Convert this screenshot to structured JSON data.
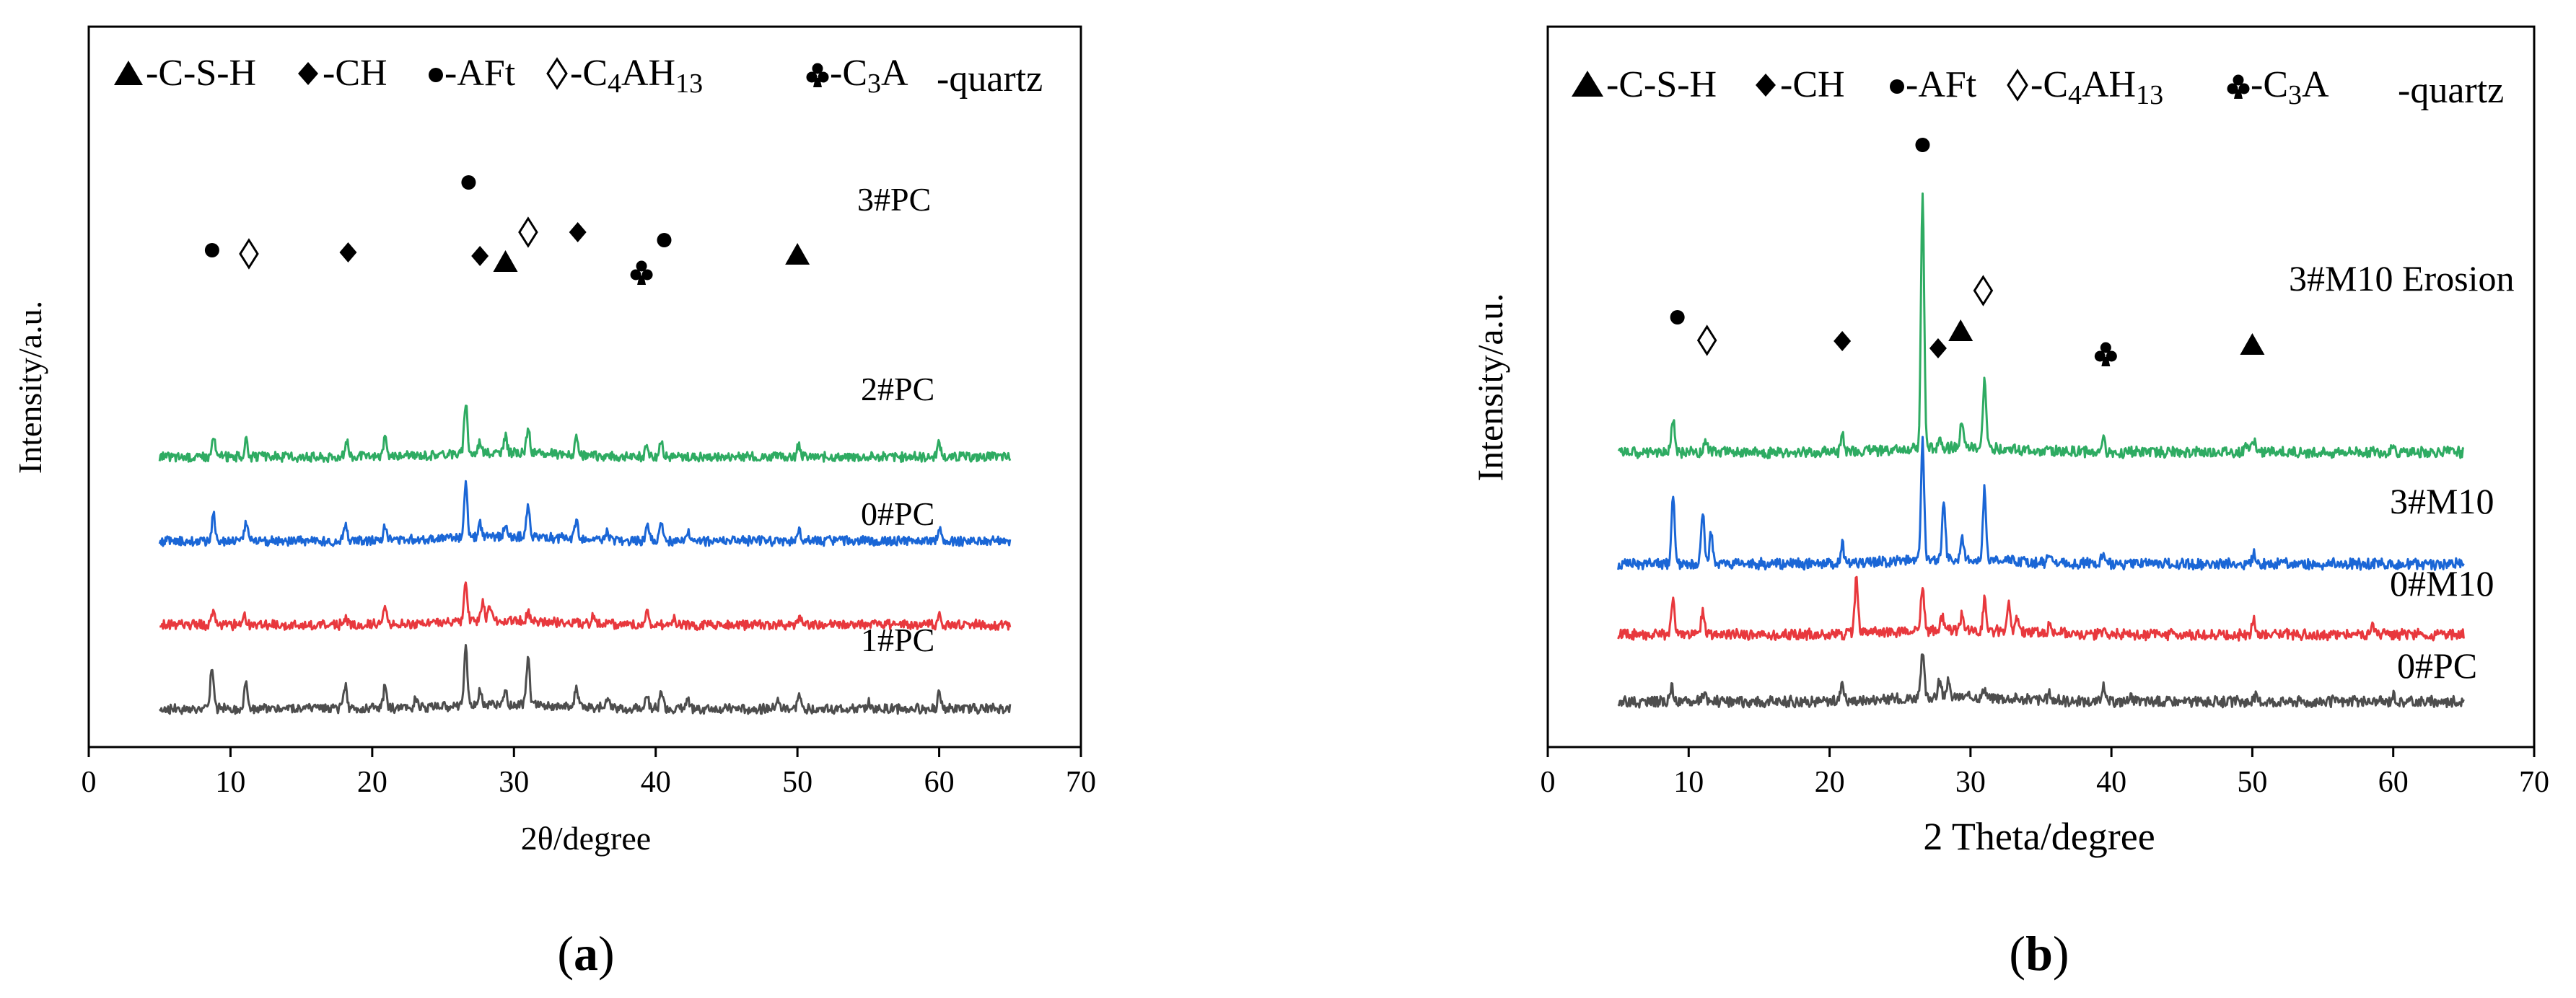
{
  "chart_data": [
    {
      "panel_label": "(a)",
      "type": "line",
      "xlabel": "2θ/degree",
      "ylabel": "Intensity/a.u.",
      "xlim": [
        0,
        70
      ],
      "xticks": [
        0,
        10,
        20,
        30,
        40,
        50,
        60,
        70
      ],
      "yticks": "none",
      "legend": {
        "placement": "top",
        "entries": [
          {
            "symbol": "triangle",
            "label": "-C-S-H"
          },
          {
            "symbol": "diamond",
            "label": "-CH"
          },
          {
            "symbol": "circle",
            "label": "-AFt"
          },
          {
            "symbol": "diamond-open",
            "label": "-C",
            "parts": [
              [
                "C",
                ""
              ],
              [
                "4",
                "sub"
              ],
              [
                "AH",
                ""
              ],
              [
                "13",
                "sub"
              ]
            ]
          },
          {
            "symbol": "club",
            "label": "-C",
            "parts": [
              [
                "C",
                ""
              ],
              [
                "3",
                "sub"
              ],
              [
                "A",
                ""
              ]
            ]
          },
          {
            "symbol": "none",
            "label": "-quartz"
          }
        ]
      },
      "series": [
        {
          "name": "1#PC",
          "color": "#4d4d4d",
          "baseline": 0.0,
          "peaks": [
            [
              8.7,
              2.6
            ],
            [
              11.1,
              1.9
            ],
            [
              18.1,
              1.5
            ],
            [
              20.9,
              1.4
            ],
            [
              23.1,
              0.6
            ],
            [
              26.6,
              3.6
            ],
            [
              27.6,
              0.8
            ],
            [
              29.4,
              0.9
            ],
            [
              31.0,
              3.0
            ],
            [
              34.4,
              1.4
            ],
            [
              36.6,
              0.7
            ],
            [
              39.4,
              0.9
            ],
            [
              40.4,
              1.1
            ],
            [
              42.3,
              0.6
            ],
            [
              48.6,
              0.5
            ],
            [
              50.1,
              0.9
            ],
            [
              55.0,
              0.4
            ],
            [
              60.0,
              1.0
            ]
          ]
        },
        {
          "name": "0#PC",
          "color": "#e8383d",
          "baseline": 5.2,
          "peaks": [
            [
              8.8,
              1.0
            ],
            [
              11.0,
              0.5
            ],
            [
              18.1,
              0.5
            ],
            [
              20.9,
              1.2
            ],
            [
              26.6,
              2.4
            ],
            [
              27.8,
              1.1
            ],
            [
              28.3,
              1.0
            ],
            [
              31.0,
              0.6
            ],
            [
              35.6,
              0.5
            ],
            [
              39.4,
              1.0
            ],
            [
              41.3,
              0.4
            ],
            [
              50.2,
              0.5
            ],
            [
              60.0,
              0.6
            ]
          ]
        },
        {
          "name": "2#PC",
          "color": "#1a66d6",
          "baseline": 10.4,
          "peaks": [
            [
              8.8,
              1.7
            ],
            [
              11.1,
              1.2
            ],
            [
              18.1,
              1.1
            ],
            [
              20.9,
              1.0
            ],
            [
              26.6,
              3.6
            ],
            [
              27.6,
              0.8
            ],
            [
              29.4,
              0.9
            ],
            [
              31.0,
              2.1
            ],
            [
              34.4,
              1.1
            ],
            [
              36.6,
              0.5
            ],
            [
              39.4,
              0.9
            ],
            [
              40.4,
              1.0
            ],
            [
              42.3,
              0.5
            ],
            [
              50.1,
              0.6
            ],
            [
              60.0,
              0.8
            ]
          ]
        },
        {
          "name": "3#PC",
          "color": "#2eab62",
          "baseline": 15.6,
          "peaks": [
            [
              8.8,
              1.2
            ],
            [
              11.1,
              1.0
            ],
            [
              18.2,
              1.0
            ],
            [
              20.9,
              1.1
            ],
            [
              26.6,
              3.2
            ],
            [
              27.6,
              0.8
            ],
            [
              29.4,
              1.0
            ],
            [
              31.0,
              1.6
            ],
            [
              34.4,
              1.0
            ],
            [
              39.4,
              0.7
            ],
            [
              40.4,
              1.0
            ],
            [
              50.1,
              0.7
            ],
            [
              60.0,
              0.9
            ]
          ]
        }
      ],
      "markers": [
        {
          "symbol": "circle",
          "x": 8.7
        },
        {
          "symbol": "diamond-open",
          "x": 11.3
        },
        {
          "symbol": "diamond",
          "x": 18.3
        },
        {
          "symbol": "circle",
          "x": 26.8
        },
        {
          "symbol": "diamond",
          "x": 27.6
        },
        {
          "symbol": "triangle",
          "x": 29.4
        },
        {
          "symbol": "diamond-open",
          "x": 31.0
        },
        {
          "symbol": "diamond",
          "x": 34.5
        },
        {
          "symbol": "club",
          "x": 39.0
        },
        {
          "symbol": "circle",
          "x": 40.6
        },
        {
          "symbol": "triangle",
          "x": 50.0
        }
      ]
    },
    {
      "panel_label": "(b)",
      "type": "line",
      "xlabel": "2 Theta/degree",
      "ylabel": "Intensity/a.u.",
      "xlim": [
        0,
        70
      ],
      "xticks": [
        0,
        10,
        20,
        30,
        40,
        50,
        60,
        70
      ],
      "yticks": "none",
      "legend": {
        "placement": "top",
        "entries": [
          {
            "symbol": "triangle",
            "label": "-C-S-H"
          },
          {
            "symbol": "diamond",
            "label": "-CH"
          },
          {
            "symbol": "circle",
            "label": "-AFt"
          },
          {
            "symbol": "diamond-open",
            "label": "-C",
            "parts": [
              [
                "C",
                ""
              ],
              [
                "4",
                "sub"
              ],
              [
                "AH",
                ""
              ],
              [
                "13",
                "sub"
              ]
            ]
          },
          {
            "symbol": "club",
            "label": "-C",
            "parts": [
              [
                "C",
                ""
              ],
              [
                "3",
                "sub"
              ],
              [
                "A",
                ""
              ]
            ]
          },
          {
            "symbol": "none",
            "label": "-quartz"
          }
        ]
      },
      "series": [
        {
          "name": "0#PC",
          "color": "#4d4d4d",
          "baseline": 0.0,
          "peaks": [
            [
              8.8,
              0.8
            ],
            [
              11.1,
              0.5
            ],
            [
              20.9,
              1.1
            ],
            [
              26.6,
              2.4
            ],
            [
              27.8,
              0.9
            ],
            [
              28.4,
              0.8
            ],
            [
              31.0,
              0.5
            ],
            [
              35.6,
              0.4
            ],
            [
              39.4,
              0.8
            ],
            [
              41.3,
              0.3
            ],
            [
              50.2,
              0.3
            ],
            [
              60.0,
              0.4
            ]
          ]
        },
        {
          "name": "0#M10",
          "color": "#e8383d",
          "baseline": 3.6,
          "peaks": [
            [
              8.9,
              1.9
            ],
            [
              11.0,
              1.2
            ],
            [
              21.9,
              2.9
            ],
            [
              26.6,
              2.5
            ],
            [
              28.0,
              0.7
            ],
            [
              29.4,
              0.8
            ],
            [
              31.0,
              1.6
            ],
            [
              32.7,
              1.5
            ],
            [
              33.3,
              0.7
            ],
            [
              35.6,
              0.5
            ],
            [
              39.5,
              0.5
            ],
            [
              50.1,
              0.8
            ],
            [
              58.5,
              0.5
            ]
          ]
        },
        {
          "name": "3#M10",
          "color": "#1a66d6",
          "baseline": 7.4,
          "peaks": [
            [
              8.9,
              3.6
            ],
            [
              11.0,
              2.9
            ],
            [
              11.6,
              1.7
            ],
            [
              20.9,
              1.1
            ],
            [
              26.6,
              6.4
            ],
            [
              28.1,
              3.2
            ],
            [
              29.4,
              1.4
            ],
            [
              31.0,
              3.8
            ],
            [
              35.6,
              0.5
            ],
            [
              39.4,
              0.5
            ],
            [
              50.1,
              0.5
            ]
          ]
        },
        {
          "name": "3#M10 Erosion",
          "color": "#2eab62",
          "baseline": 13.4,
          "peaks": [
            [
              8.9,
              1.8
            ],
            [
              11.2,
              0.7
            ],
            [
              20.9,
              1.0
            ],
            [
              26.6,
              13.5
            ],
            [
              27.8,
              0.6
            ],
            [
              29.4,
              1.4
            ],
            [
              31.0,
              3.7
            ],
            [
              39.4,
              0.7
            ],
            [
              49.6,
              0.5
            ],
            [
              50.1,
              0.7
            ],
            [
              60.0,
              0.4
            ]
          ]
        }
      ],
      "markers": [
        {
          "symbol": "circle",
          "x": 9.2
        },
        {
          "symbol": "diamond-open",
          "x": 11.3
        },
        {
          "symbol": "diamond",
          "x": 20.9
        },
        {
          "symbol": "circle",
          "x": 26.6
        },
        {
          "symbol": "diamond",
          "x": 27.7
        },
        {
          "symbol": "triangle",
          "x": 29.3
        },
        {
          "symbol": "diamond-open",
          "x": 30.9
        },
        {
          "symbol": "club",
          "x": 39.6
        },
        {
          "symbol": "triangle",
          "x": 50.0
        }
      ]
    }
  ]
}
